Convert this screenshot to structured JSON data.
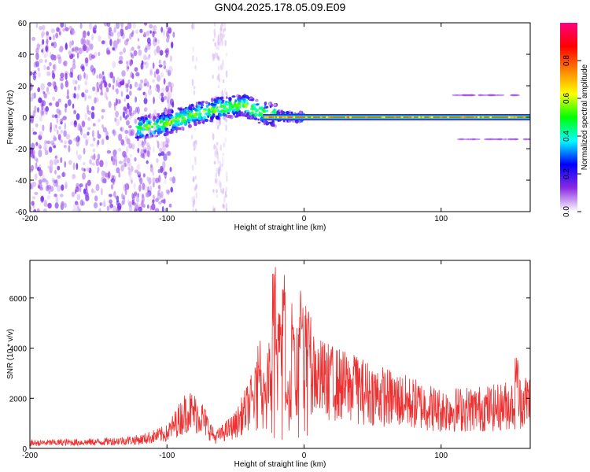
{
  "title": "GN04.2025.178.05.09.E09",
  "chart_data": [
    {
      "type": "heatmap",
      "xlabel": "Height of straight line (km)",
      "ylabel": "Frequency (Hz)",
      "xlim": [
        -200,
        165
      ],
      "ylim": [
        -60,
        60
      ],
      "xticks": [
        -200,
        -100,
        0,
        100
      ],
      "yticks": [
        60,
        40,
        20,
        0,
        -20,
        -40,
        -60
      ],
      "colorbar": {
        "label": "Normalized spectral amplitude",
        "range": [
          0.0,
          1.0
        ],
        "ticks": [
          "0.0",
          "0.2",
          "0.4",
          "0.6",
          "0.8"
        ],
        "colors": [
          "#ffffff",
          "#8a2be2",
          "#0000ff",
          "#00ffff",
          "#00ff00",
          "#ffff00",
          "#ff8000",
          "#ff0000",
          "#ff0080"
        ]
      },
      "features": {
        "carrier_line_freq_hz": 0,
        "carrier_from_km": -30,
        "drift_track": [
          {
            "x": -120,
            "y": -7
          },
          {
            "x": -100,
            "y": -4
          },
          {
            "x": -80,
            "y": 2
          },
          {
            "x": -60,
            "y": 6
          },
          {
            "x": -45,
            "y": 8
          },
          {
            "x": -35,
            "y": 4
          },
          {
            "x": -20,
            "y": 1
          },
          {
            "x": -5,
            "y": 0
          }
        ],
        "noise_region_km": [
          -200,
          -100
        ]
      }
    },
    {
      "type": "line",
      "xlabel": "Height of straight line (km)",
      "ylabel": "SNR (10 * v/v)",
      "xlim": [
        -200,
        165
      ],
      "ylim": [
        0,
        7500
      ],
      "xticks": [
        -200,
        -100,
        0,
        100
      ],
      "yticks": [
        0,
        2000,
        4000,
        6000
      ],
      "color": "#ee3030",
      "envelope": [
        {
          "x": -200,
          "y": 250
        },
        {
          "x": -150,
          "y": 300
        },
        {
          "x": -120,
          "y": 400
        },
        {
          "x": -100,
          "y": 700
        },
        {
          "x": -85,
          "y": 1800
        },
        {
          "x": -75,
          "y": 1500
        },
        {
          "x": -65,
          "y": 500
        },
        {
          "x": -50,
          "y": 1100
        },
        {
          "x": -32,
          "y": 2800
        },
        {
          "x": -20,
          "y": 3500
        },
        {
          "x": -10,
          "y": 3000
        },
        {
          "x": 0,
          "y": 4500
        },
        {
          "x": 10,
          "y": 3300
        },
        {
          "x": 30,
          "y": 2900
        },
        {
          "x": 60,
          "y": 2400
        },
        {
          "x": 100,
          "y": 1800
        },
        {
          "x": 140,
          "y": 1900
        },
        {
          "x": 165,
          "y": 2300
        }
      ],
      "peaks": [
        {
          "x": -33,
          "y": 4300
        },
        {
          "x": -22,
          "y": 7400
        },
        {
          "x": -18,
          "y": 5500
        },
        {
          "x": -15,
          "y": 7100
        },
        {
          "x": -8,
          "y": 6300
        },
        {
          "x": -2,
          "y": 6500
        },
        {
          "x": 3,
          "y": 5400
        },
        {
          "x": 20,
          "y": 4000
        },
        {
          "x": 37,
          "y": 3700
        },
        {
          "x": 155,
          "y": 3700
        }
      ]
    }
  ]
}
